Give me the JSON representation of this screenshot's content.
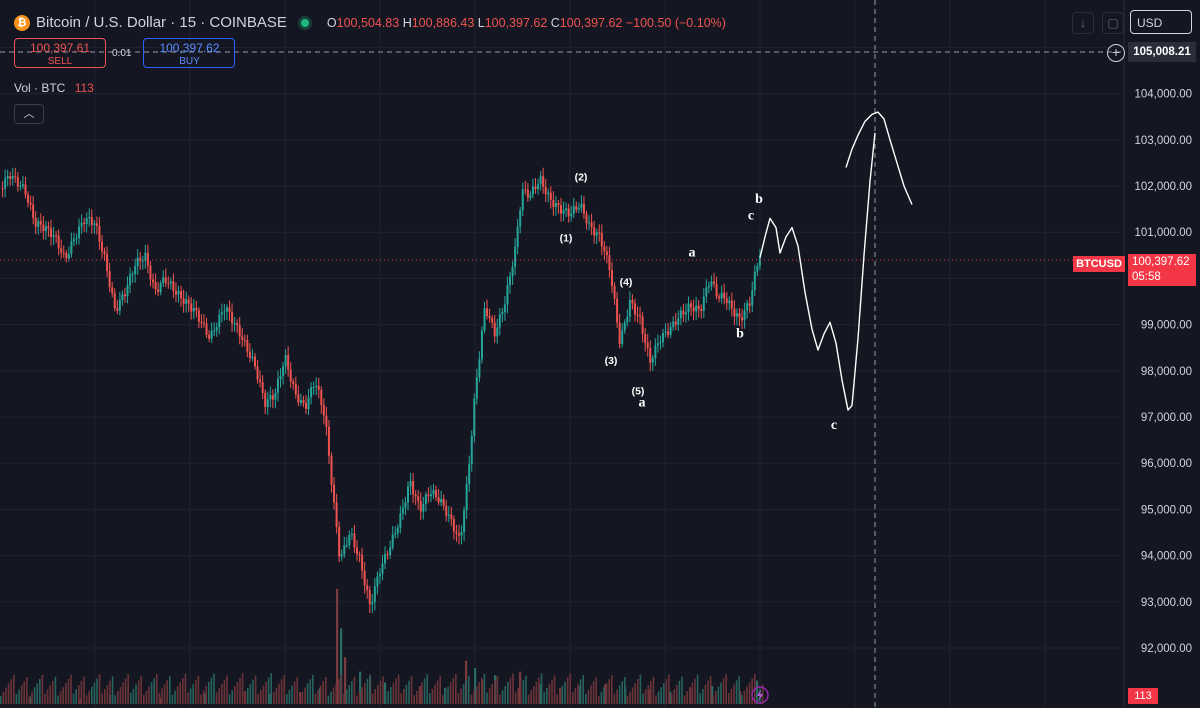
{
  "header": {
    "title": "Bitcoin / U.S. Dollar · 15 · COINBASE",
    "ohlc": {
      "o_key": "O",
      "o_val": "100,504.83",
      "h_key": "H",
      "h_val": "100,886.43",
      "l_key": "L",
      "l_val": "100,397.62",
      "c_key": "C",
      "c_val": "100,397.62",
      "change": "−100.50 (−0.10%)"
    }
  },
  "trade": {
    "sell_price": "100,397.61",
    "sell_label": "SELL",
    "spread": "0.01",
    "buy_price": "100,397.62",
    "buy_label": "BUY"
  },
  "volume_legend": {
    "label": "Vol · BTC",
    "value": "113"
  },
  "controls": {
    "currency": "USD",
    "collapse_icon": "chevron-up-icon",
    "download_icon": "download-arrow-icon",
    "square_icon": "maximize-square-icon",
    "plus_icon": "add-plus-icon"
  },
  "price_scale": {
    "crosshair_price": "105,008.21",
    "last_symbol": "BTCUSD",
    "last_price": "100,397.62",
    "countdown": "05:58",
    "volume_label": "113"
  },
  "colors": {
    "background": "#141722",
    "up": "#26a69a",
    "down": "#ef5350",
    "last_price": "#f23645",
    "drawing": "#ffffff"
  },
  "chart_data": {
    "type": "candlestick",
    "symbol": "BTCUSD",
    "interval": "15",
    "exchange": "COINBASE",
    "ylim": [
      91200,
      105300
    ],
    "y_ticks": [
      92000,
      93000,
      94000,
      95000,
      96000,
      97000,
      98000,
      99000,
      100000,
      101000,
      102000,
      103000,
      104000,
      105000
    ],
    "y_tick_labels": [
      "92,000.00",
      "93,000.00",
      "94,000.00",
      "95,000.00",
      "96,000.00",
      "97,000.00",
      "98,000.00",
      "99,000.00",
      "100,000.00",
      "101,000.00",
      "102,000.00",
      "103,000.00",
      "104,000.00",
      "105,000.00"
    ],
    "grid": true,
    "last_price": 100397.62,
    "price_path": [
      [
        0,
        101950
      ],
      [
        10,
        102250
      ],
      [
        25,
        101900
      ],
      [
        35,
        101200
      ],
      [
        45,
        101100
      ],
      [
        55,
        100900
      ],
      [
        65,
        100400
      ],
      [
        75,
        100900
      ],
      [
        85,
        101300
      ],
      [
        95,
        101200
      ],
      [
        105,
        100400
      ],
      [
        115,
        99300
      ],
      [
        125,
        99700
      ],
      [
        135,
        100300
      ],
      [
        145,
        100500
      ],
      [
        155,
        99700
      ],
      [
        165,
        100000
      ],
      [
        180,
        99600
      ],
      [
        195,
        99300
      ],
      [
        210,
        98700
      ],
      [
        225,
        99400
      ],
      [
        240,
        98800
      ],
      [
        255,
        98100
      ],
      [
        265,
        97300
      ],
      [
        275,
        97500
      ],
      [
        285,
        98300
      ],
      [
        295,
        97500
      ],
      [
        305,
        97200
      ],
      [
        315,
        97800
      ],
      [
        325,
        97000
      ],
      [
        333,
        95300
      ],
      [
        340,
        93900
      ],
      [
        350,
        94500
      ],
      [
        360,
        93900
      ],
      [
        370,
        92900
      ],
      [
        380,
        93700
      ],
      [
        390,
        94200
      ],
      [
        400,
        94800
      ],
      [
        410,
        95600
      ],
      [
        420,
        95000
      ],
      [
        430,
        95400
      ],
      [
        440,
        95200
      ],
      [
        450,
        94800
      ],
      [
        460,
        94300
      ],
      [
        468,
        95700
      ],
      [
        475,
        97500
      ],
      [
        485,
        99400
      ],
      [
        495,
        98800
      ],
      [
        505,
        99500
      ],
      [
        515,
        100600
      ],
      [
        522,
        101900
      ],
      [
        530,
        101800
      ],
      [
        540,
        102150
      ],
      [
        550,
        101700
      ],
      [
        560,
        101500
      ],
      [
        570,
        101400
      ],
      [
        580,
        101600
      ],
      [
        590,
        101100
      ],
      [
        600,
        100900
      ],
      [
        610,
        100200
      ],
      [
        620,
        98600
      ],
      [
        630,
        99500
      ],
      [
        640,
        99100
      ],
      [
        650,
        98200
      ],
      [
        660,
        98700
      ],
      [
        670,
        98900
      ],
      [
        680,
        99200
      ],
      [
        690,
        99400
      ],
      [
        700,
        99300
      ],
      [
        710,
        100000
      ],
      [
        718,
        99600
      ],
      [
        725,
        99600
      ],
      [
        733,
        99300
      ],
      [
        740,
        99100
      ],
      [
        750,
        99500
      ],
      [
        756,
        100200
      ],
      [
        762,
        100700
      ]
    ],
    "volume": {
      "label": "Vol · BTC",
      "spikes": [
        [
          30,
          40
        ],
        [
          80,
          30
        ],
        [
          110,
          50
        ],
        [
          160,
          35
        ],
        [
          205,
          60
        ],
        [
          245,
          70
        ],
        [
          270,
          55
        ],
        [
          300,
          65
        ],
        [
          320,
          90
        ],
        [
          337,
          640
        ],
        [
          341,
          420
        ],
        [
          345,
          260
        ],
        [
          360,
          180
        ],
        [
          370,
          150
        ],
        [
          385,
          120
        ],
        [
          420,
          100
        ],
        [
          445,
          90
        ],
        [
          466,
          240
        ],
        [
          475,
          200
        ],
        [
          482,
          130
        ],
        [
          495,
          160
        ],
        [
          520,
          180
        ],
        [
          540,
          110
        ],
        [
          560,
          90
        ],
        [
          580,
          100
        ],
        [
          605,
          110
        ],
        [
          625,
          95
        ],
        [
          650,
          80
        ],
        [
          670,
          70
        ],
        [
          690,
          85
        ],
        [
          712,
          100
        ],
        [
          740,
          70
        ],
        [
          757,
          130
        ]
      ]
    },
    "wave_labels": {
      "circled": [
        {
          "text": "(1)",
          "time": 566,
          "price": 100800
        },
        {
          "text": "(2)",
          "time": 581,
          "price": 102120
        },
        {
          "text": "(3)",
          "time": 611,
          "price": 98150
        },
        {
          "text": "(4)",
          "time": 626,
          "price": 99850
        },
        {
          "text": "(5)",
          "time": 638,
          "price": 97490
        }
      ],
      "letters": [
        {
          "text": "a",
          "time": 642,
          "price": 97230
        },
        {
          "text": "a",
          "time": 692,
          "price": 100470
        },
        {
          "text": "b",
          "time": 740,
          "price": 98720
        },
        {
          "text": "c",
          "time": 751,
          "price": 101280
        },
        {
          "text": "b",
          "time": 759,
          "price": 101630
        },
        {
          "text": "c",
          "time": 834,
          "price": 96740
        }
      ]
    },
    "projection_path": [
      [
        760,
        100450
      ],
      [
        765,
        100900
      ],
      [
        770,
        101300
      ],
      [
        776,
        101100
      ],
      [
        780,
        100550
      ],
      [
        786,
        100900
      ],
      [
        792,
        101100
      ],
      [
        798,
        100700
      ],
      [
        805,
        99700
      ],
      [
        812,
        98900
      ],
      [
        818,
        98450
      ],
      [
        824,
        98800
      ],
      [
        830,
        99050
      ],
      [
        836,
        98600
      ],
      [
        842,
        97800
      ],
      [
        848,
        97150
      ],
      [
        852,
        97250
      ],
      [
        858,
        98700
      ],
      [
        864,
        100500
      ],
      [
        870,
        102100
      ],
      [
        875,
        103150
      ]
    ],
    "projection_path_2": [
      [
        846,
        102400
      ],
      [
        852,
        102800
      ],
      [
        858,
        103100
      ],
      [
        865,
        103400
      ],
      [
        872,
        103550
      ],
      [
        878,
        103600
      ],
      [
        884,
        103450
      ],
      [
        890,
        103000
      ],
      [
        897,
        102500
      ],
      [
        904,
        102000
      ],
      [
        912,
        101600
      ]
    ]
  }
}
